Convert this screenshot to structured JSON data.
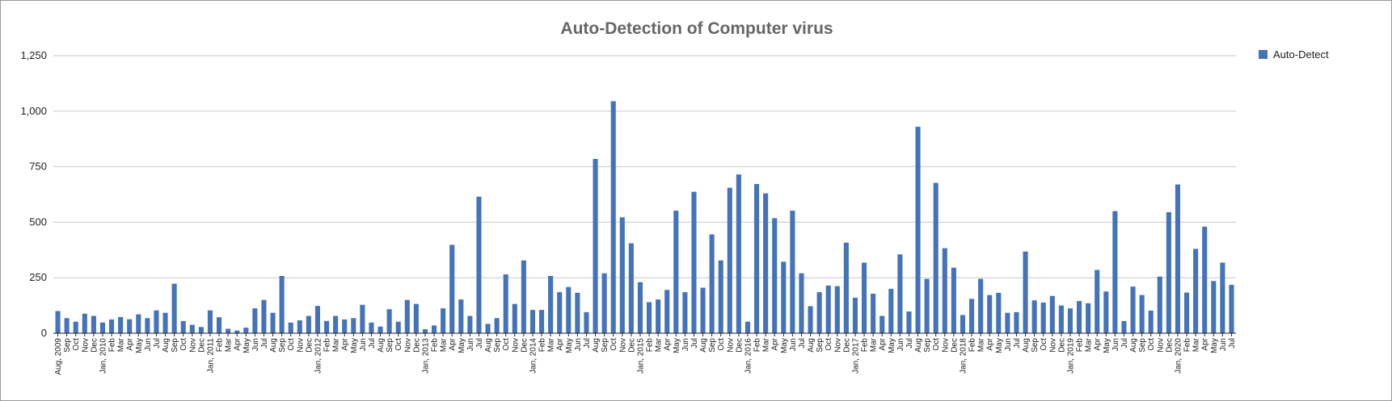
{
  "chart_data": {
    "type": "bar",
    "title": "Auto-Detection of Computer virus",
    "xlabel": "",
    "ylabel": "",
    "ylim": [
      0,
      1250
    ],
    "yticks": [
      0,
      250,
      500,
      750,
      1000,
      1250
    ],
    "ytick_labels": [
      "0",
      "250",
      "500",
      "750",
      "1,000",
      "1,250"
    ],
    "grid": true,
    "legend_position": "top-right",
    "colors": {
      "bar": "#4573b9",
      "grid": "#c8c8c8",
      "axis": "#222222"
    },
    "categories": [
      "Aug, 2009",
      "Sep",
      "Oct",
      "Nov",
      "Dec",
      "Jan, 2010",
      "Feb",
      "Mar",
      "Apr",
      "May",
      "Jun",
      "Jul",
      "Aug",
      "Sep",
      "Oct",
      "Nov",
      "Dec",
      "Jan, 2011",
      "Feb",
      "Mar",
      "Apr",
      "May",
      "Jun",
      "Jul",
      "Aug",
      "Sep",
      "Oct",
      "Nov",
      "Dec",
      "Jan, 2012",
      "Feb",
      "Mar",
      "Apr",
      "May",
      "Jun",
      "Jul",
      "Aug",
      "Sep",
      "Oct",
      "Nov",
      "Dec",
      "Jan, 2013",
      "Feb",
      "Mar",
      "Apr",
      "May",
      "Jun",
      "Jul",
      "Aug",
      "Sep",
      "Oct",
      "Nov",
      "Dec",
      "Jan, 2014",
      "Feb",
      "Mar",
      "Apr",
      "May",
      "Jun",
      "Jul",
      "Aug",
      "Sep",
      "Oct",
      "Nov",
      "Dec",
      "Jan, 2015",
      "Feb",
      "Mar",
      "Apr",
      "May",
      "Jun",
      "Jul",
      "Aug",
      "Sep",
      "Oct",
      "Nov",
      "Dec",
      "Jan, 2016",
      "Feb",
      "Mar",
      "Apr",
      "May",
      "Jun",
      "Jul",
      "Aug",
      "Sep",
      "Oct",
      "Nov",
      "Dec",
      "Jan, 2017",
      "Feb",
      "Mar",
      "Apr",
      "May",
      "Jun",
      "Jul",
      "Aug",
      "Sep",
      "Oct",
      "Nov",
      "Dec",
      "Jan, 2018",
      "Feb",
      "Mar",
      "Apr",
      "May",
      "Jun",
      "Jul",
      "Aug",
      "Sep",
      "Oct",
      "Nov",
      "Dec",
      "Jan, 2019",
      "Feb",
      "Mar",
      "Apr",
      "May",
      "Jun",
      "Jul",
      "Aug",
      "Sep",
      "Oct",
      "Nov",
      "Dec",
      "Jan, 2020",
      "Feb",
      "Mar",
      "Apr",
      "May",
      "Jun",
      "Jul"
    ],
    "series": [
      {
        "name": "Auto-Detect",
        "values": [
          100,
          68,
          52,
          88,
          78,
          48,
          62,
          73,
          63,
          85,
          68,
          103,
          92,
          223,
          55,
          38,
          28,
          103,
          72,
          20,
          12,
          25,
          112,
          150,
          92,
          258,
          48,
          58,
          78,
          123,
          55,
          78,
          62,
          68,
          128,
          48,
          30,
          108,
          52,
          150,
          132,
          18,
          35,
          112,
          398,
          152,
          78,
          615,
          42,
          68,
          265,
          132,
          328,
          105,
          105,
          258,
          185,
          208,
          182,
          95,
          785,
          270,
          1045,
          522,
          405,
          230,
          140,
          152,
          195,
          552,
          185,
          637,
          205,
          445,
          328,
          655,
          715,
          52,
          672,
          630,
          518,
          322,
          552,
          270,
          122,
          185,
          215,
          212,
          408,
          160,
          318,
          178,
          78,
          200,
          355,
          98,
          930,
          245,
          677,
          383,
          295,
          82,
          155,
          245,
          172,
          182,
          92,
          95,
          368,
          148,
          138,
          168,
          125,
          112,
          145,
          135,
          285,
          188,
          550,
          55,
          210,
          172,
          102,
          255,
          545,
          670,
          183,
          380,
          480,
          235,
          318,
          218
        ]
      }
    ]
  }
}
